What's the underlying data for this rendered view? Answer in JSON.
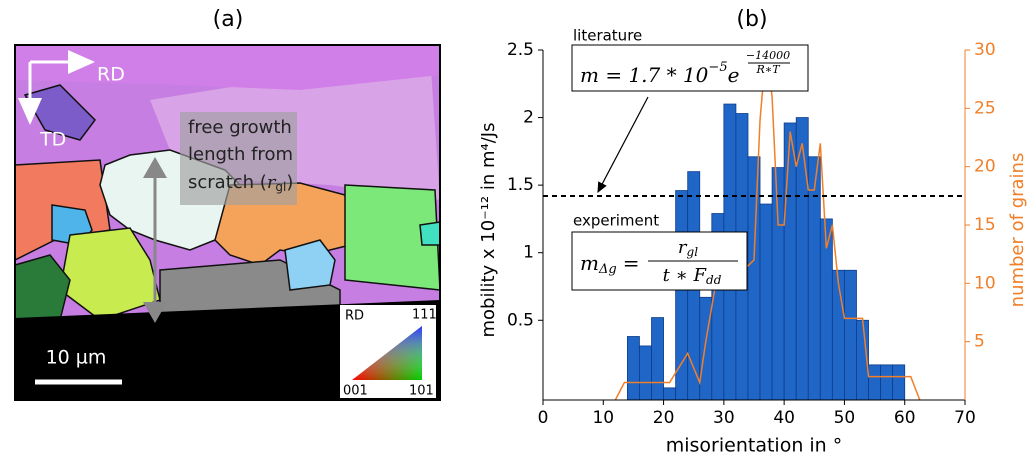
{
  "panel_a": {
    "label": "(a)",
    "directions": [
      "RD",
      "TD"
    ],
    "annotation": {
      "lines": [
        "free growth",
        "length from"
      ],
      "last_line": [
        "scratch (",
        "r",
        "gl",
        ")"
      ]
    },
    "scale_bar": "10 µm",
    "legend": {
      "direction": "RD",
      "corners": [
        "111",
        "001",
        "101"
      ]
    }
  },
  "chart_data": {
    "type": "histogram",
    "panel_label": "(b)",
    "x_label": "misorientation in °",
    "y_label": "mobility x 10⁻¹² in m⁴/Js",
    "y2_label": "number of grains",
    "bins": [
      14,
      16,
      18,
      20,
      22,
      24,
      26,
      28,
      30,
      32,
      34,
      36,
      38,
      40,
      42,
      44,
      46,
      48,
      50,
      52,
      54,
      56,
      58,
      60
    ],
    "values": [
      0.38,
      0.31,
      0.52,
      0,
      1.46,
      1.6,
      0.67,
      1.29,
      2.1,
      2.03,
      1.71,
      1.36,
      1.63,
      1.96,
      2.0,
      1.71,
      1.25,
      0.87,
      0.87,
      0.5,
      0.17,
      0.17,
      0.17
    ],
    "color": "#1f66c7",
    "overlay": {
      "type": "line",
      "axis": "y2",
      "color": "#f07f2a",
      "x": [
        12,
        13.5,
        21,
        24,
        26,
        27,
        29,
        34,
        35,
        36,
        37,
        38,
        39,
        40,
        41,
        42,
        43,
        44,
        45,
        46,
        47,
        48,
        49,
        50,
        53,
        54,
        61,
        62.5
      ],
      "values": [
        0,
        1.5,
        1.5,
        4,
        1.5,
        5,
        11,
        11.5,
        12,
        24,
        30,
        26,
        15,
        15,
        23,
        20,
        22,
        18,
        18,
        22,
        13,
        15,
        10,
        7,
        7,
        2,
        2,
        0
      ]
    },
    "reference_line": 1.42,
    "annotations": {
      "literature": {
        "label": "literature",
        "formula": [
          "m = 1.7 * 10",
          "−5",
          "e",
          "−14000",
          "R∗T"
        ]
      },
      "experiment": {
        "label": "experiment",
        "formula": [
          "m",
          "Δg",
          "=",
          "r",
          "gl",
          "t ∗ F",
          "dd"
        ]
      }
    },
    "xlim": [
      0,
      70
    ],
    "xticks": [
      0,
      10,
      20,
      30,
      40,
      50,
      60,
      70
    ],
    "ylim": [
      -0.09,
      2.5
    ],
    "yticks": [
      0.5,
      1.0,
      1.5,
      2.0,
      2.5
    ],
    "y2lim": [
      0,
      30
    ],
    "y2ticks": [
      5,
      10,
      15,
      20,
      25,
      30
    ]
  }
}
